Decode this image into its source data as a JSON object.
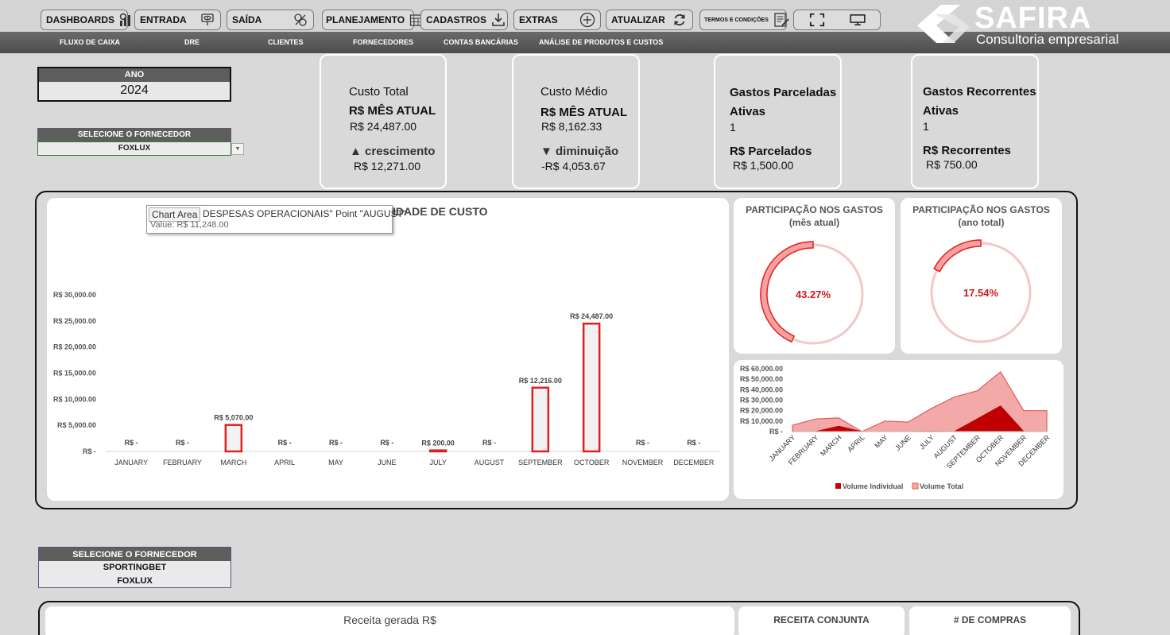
{
  "toolbar": {
    "buttons": [
      "DASHBOARDS",
      "ENTRADA",
      "SAÍDA",
      "PLANEJAMENTO",
      "CADASTROS",
      "EXTRAS",
      "ATUALIZAR",
      "TERMOS E CONDIÇÕES"
    ],
    "icons": [
      "dashboard-icon",
      "eye-icon",
      "tools-icon",
      "calendar-icon",
      "download-icon",
      "plus-circle-icon",
      "refresh-icon",
      "document-icon",
      "fullscreen-icon",
      "monitor-icon"
    ]
  },
  "nav": [
    "FLUXO DE CAIXA",
    "DRE",
    "CLIENTES",
    "FORNECEDORES",
    "CONTAS BANCÁRIAS",
    "ANÁLISE DE PRODUTOS E CUSTOS"
  ],
  "brand": {
    "name": "SAFIRA",
    "tagline": "Consultoria empresarial"
  },
  "filters": {
    "year_label": "ANO",
    "year": "2024",
    "supplier_label": "SELECIONE O FORNECEDOR",
    "supplier": "FOXLUX"
  },
  "kpis": {
    "total": {
      "title": "Custo Total",
      "subtitle": "R$ MÊS ATUAL",
      "value": "R$ 24,487.00",
      "trend": "▲ crescimento",
      "trend_value": "R$ 12,271.00"
    },
    "average": {
      "title": "Custo Médio",
      "subtitle": "R$ MÊS ATUAL",
      "value": "R$ 8,162.33",
      "trend": "▼ diminuição",
      "trend_value": "-R$ 4,053.67"
    },
    "installments": {
      "title1": "Gastos Parceladas",
      "title2": "Ativas",
      "count": "1",
      "label": "R$ Parcelados",
      "value": "R$ 1,500.00"
    },
    "recurring": {
      "title1": "Gastos Recorrentes",
      "title2": "Ativas",
      "count": "1",
      "label": "R$ Recorrentes",
      "value": "R$ 750.00"
    }
  },
  "tooltip": {
    "label": "Chart Area",
    "series_line": "DESPESAS OPERACIONAIS\" Point \"AUGUST\"",
    "value_line": "Value:  R$ 11,248.00"
  },
  "bar_chart_title_fragment": "IDADE DE CUSTO",
  "chart_data": [
    {
      "type": "bar",
      "categories": [
        "JANUARY",
        "FEBRUARY",
        "MARCH",
        "APRIL",
        "MAY",
        "JUNE",
        "JULY",
        "AUGUST",
        "SEPTEMBER",
        "OCTOBER",
        "NOVEMBER",
        "DECEMBER"
      ],
      "values": [
        0,
        0,
        5070,
        0,
        0,
        0,
        200,
        0,
        12216,
        24487,
        0,
        0
      ],
      "data_labels": [
        "R$ -",
        "R$ -",
        "R$ 5,070.00",
        "R$ -",
        "R$ -",
        "R$ -",
        "R$ 200.00",
        "R$ -",
        "R$ 12,216.00",
        "R$ 24,487.00",
        "R$ -",
        "R$ -"
      ],
      "yticks": [
        "R$ -",
        "R$ 5,000.00",
        "R$ 10,000.00",
        "R$ 15,000.00",
        "R$ 20,000.00",
        "R$ 25,000.00",
        "R$ 30,000.00"
      ],
      "ylim": [
        0,
        30000
      ]
    },
    {
      "type": "pie",
      "title_line1": "PARTICIPAÇÃO NOS GASTOS",
      "title_line2": "(mês atual)",
      "value": 43.27,
      "label": "43.27%"
    },
    {
      "type": "pie",
      "title_line1": "PARTICIPAÇÃO NOS GASTOS",
      "title_line2": "(ano total)",
      "value": 17.54,
      "label": "17.54%"
    },
    {
      "type": "area",
      "categories": [
        "JANUARY",
        "FEBRUARY",
        "MARCH",
        "APRIL",
        "MAY",
        "JUNE",
        "JULY",
        "AUGUST",
        "SEPTEMBER",
        "OCTOBER",
        "NOVEMBER",
        "DECEMBER"
      ],
      "series": [
        {
          "name": "Volume Individual",
          "values": [
            0,
            0,
            5070,
            0,
            0,
            0,
            200,
            0,
            12216,
            24487,
            0,
            0
          ]
        },
        {
          "name": "Volume Total",
          "values": [
            6000,
            12000,
            13000,
            0,
            10000,
            9000,
            22000,
            33000,
            39000,
            57000,
            20000,
            20000
          ]
        }
      ],
      "yticks": [
        "R$ -",
        "R$ 10,000.00",
        "R$ 20,000.00",
        "R$ 30,000.00",
        "R$ 40,000.00",
        "R$ 50,000.00",
        "R$ 60,000.00"
      ],
      "ylim": [
        0,
        60000
      ],
      "legend": "bottom",
      "colors": {
        "individual": "#c00000",
        "total": "#f08080"
      }
    }
  ],
  "bottom": {
    "supplier_label": "SELECIONE O FORNECEDOR",
    "supplier_items": [
      "SPORTINGBET",
      "FOXLUX"
    ],
    "panel1": "Receita gerada R$",
    "panel2": "RECEITA CONJUNTA",
    "panel3": "# DE COMPRAS"
  },
  "colors": {
    "accent": "#e02020",
    "bar_fill": "#f2f2f2",
    "donut_track": "#f3c7c7"
  }
}
